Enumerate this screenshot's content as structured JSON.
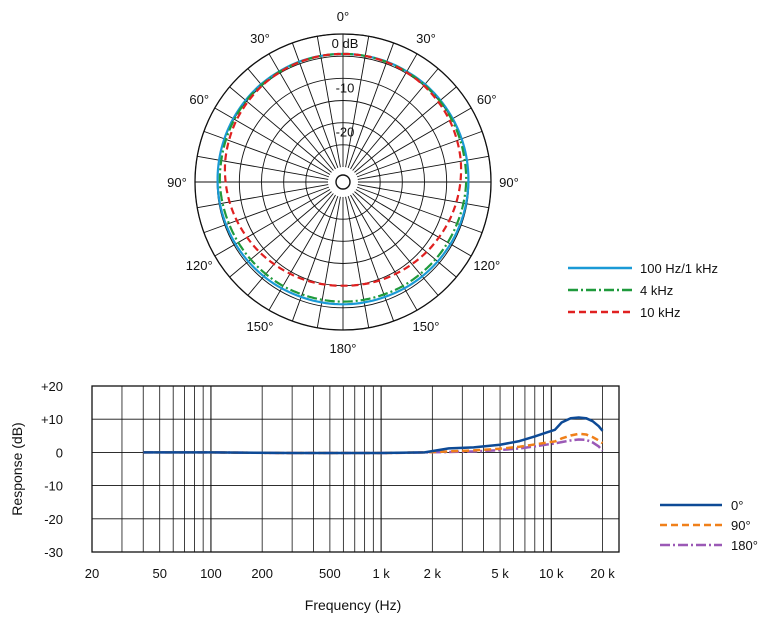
{
  "polar": {
    "angle_labels": [
      {
        "deg": 0,
        "text": "0°"
      },
      {
        "deg": 30,
        "text": "30°"
      },
      {
        "deg": 60,
        "text": "60°"
      },
      {
        "deg": 90,
        "text": "90°"
      },
      {
        "deg": 120,
        "text": "120°"
      },
      {
        "deg": 150,
        "text": "150°"
      },
      {
        "deg": 180,
        "text": "180°"
      },
      {
        "deg": -150,
        "text": "150°"
      },
      {
        "deg": -120,
        "text": "120°"
      },
      {
        "deg": -90,
        "text": "90°"
      },
      {
        "deg": -60,
        "text": "60°"
      },
      {
        "deg": -30,
        "text": "30°"
      }
    ],
    "ring_labels": [
      {
        "db": 0,
        "text": "0 dB"
      },
      {
        "db": -10,
        "text": "-10"
      },
      {
        "db": -20,
        "text": "-20"
      }
    ]
  },
  "chart_data": [
    {
      "type": "polar-line",
      "r_unit": "dB",
      "r_range": [
        -30,
        0
      ],
      "r_rings": [
        0,
        -5,
        -10,
        -15,
        -20,
        -25
      ],
      "angle_step_deg": 10,
      "series": [
        {
          "name": "100 Hz/1 kHz",
          "color": "#1a9ad6",
          "dash": "solid",
          "r_db": [
            -4.5,
            -4.5,
            -4.5,
            -4.6,
            -4.6,
            -4.7,
            -4.8,
            -4.9,
            -5.0,
            -5.1,
            -5.2,
            -5.3,
            -5.4,
            -5.5,
            -5.6,
            -5.7,
            -5.8,
            -5.8,
            -5.8
          ]
        },
        {
          "name": "4 kHz",
          "color": "#1f9a3c",
          "dash": "dash-dot",
          "r_db": [
            -4.5,
            -4.5,
            -4.6,
            -4.7,
            -4.8,
            -4.9,
            -5.1,
            -5.3,
            -5.5,
            -5.6,
            -5.8,
            -6.0,
            -6.1,
            -6.2,
            -6.3,
            -6.3,
            -6.4,
            -6.4,
            -6.4
          ]
        },
        {
          "name": "10 kHz",
          "color": "#e02020",
          "dash": "dashed",
          "r_db": [
            -4.5,
            -4.5,
            -4.6,
            -4.8,
            -5.0,
            -5.3,
            -5.6,
            -6.0,
            -6.4,
            -6.9,
            -7.4,
            -7.9,
            -8.4,
            -8.8,
            -9.2,
            -9.5,
            -9.7,
            -9.9,
            -10.0
          ]
        }
      ]
    },
    {
      "type": "line",
      "xlabel": "Frequency (Hz)",
      "ylabel": "Response (dB)",
      "x_scale": "log",
      "xlim": [
        20,
        25000
      ],
      "ylim": [
        -30,
        20
      ],
      "x_ticks": [
        {
          "v": 20,
          "t": "20"
        },
        {
          "v": 50,
          "t": "50"
        },
        {
          "v": 100,
          "t": "100"
        },
        {
          "v": 200,
          "t": "200"
        },
        {
          "v": 500,
          "t": "500"
        },
        {
          "v": 1000,
          "t": "1 k"
        },
        {
          "v": 2000,
          "t": "2 k"
        },
        {
          "v": 5000,
          "t": "5 k"
        },
        {
          "v": 10000,
          "t": "10 k"
        },
        {
          "v": 20000,
          "t": "20 k"
        }
      ],
      "y_ticks": [
        {
          "v": 20,
          "t": "+20"
        },
        {
          "v": 10,
          "t": "+10"
        },
        {
          "v": 0,
          "t": "0"
        },
        {
          "v": -10,
          "t": "-10"
        },
        {
          "v": -20,
          "t": "-20"
        },
        {
          "v": -30,
          "t": "-30"
        }
      ],
      "grid": true,
      "series": [
        {
          "name": "0°",
          "color": "#0d4a96",
          "dash": "solid",
          "x": [
            40,
            100,
            300,
            1000,
            1800,
            2500,
            3500,
            5000,
            6500,
            8000,
            9500,
            10500,
            11500,
            13000,
            14500,
            16000,
            17500,
            19000,
            20000
          ],
          "y": [
            0,
            0,
            -0.2,
            -0.2,
            0,
            1.2,
            1.5,
            2.3,
            3.4,
            4.8,
            6.1,
            6.8,
            9.0,
            10.3,
            10.5,
            10.3,
            9.4,
            7.9,
            6.5
          ]
        },
        {
          "name": "90°",
          "color": "#f0801a",
          "dash": "dashed",
          "x": [
            40,
            100,
            300,
            1000,
            1800,
            2500,
            3500,
            5000,
            6500,
            8000,
            9500,
            10500,
            11500,
            13000,
            14500,
            16000,
            17500,
            19000,
            20000
          ],
          "y": [
            0,
            0,
            -0.2,
            -0.2,
            0,
            0.3,
            0.6,
            1.1,
            1.7,
            2.4,
            3.0,
            3.3,
            4.2,
            5.1,
            5.6,
            5.4,
            4.6,
            3.6,
            2.8
          ]
        },
        {
          "name": "180°",
          "color": "#9b59b6",
          "dash": "dash-dot",
          "x": [
            40,
            100,
            300,
            1000,
            1800,
            2500,
            3500,
            5000,
            6500,
            8000,
            9500,
            10500,
            11500,
            13000,
            14500,
            16000,
            17500,
            19000,
            20000
          ],
          "y": [
            0,
            0,
            -0.2,
            -0.2,
            0,
            0.1,
            0.3,
            0.7,
            1.2,
            1.8,
            2.4,
            2.7,
            3.1,
            3.6,
            3.9,
            3.8,
            3.0,
            1.8,
            0.5
          ]
        }
      ]
    }
  ]
}
